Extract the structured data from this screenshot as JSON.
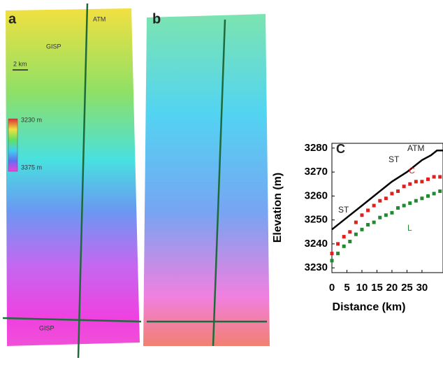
{
  "panels": {
    "a": {
      "label": "a",
      "texts": [
        "ATM",
        "GISP",
        "2 km",
        "3230 m",
        "3375 m",
        "GISP"
      ]
    },
    "b": {
      "label": "b"
    }
  },
  "chart_data": {
    "type": "scatter",
    "panel_label": "c",
    "xlabel": "Distance (km)",
    "ylabel": "Elevation (m)",
    "xlim": [
      0,
      37
    ],
    "xticks": [
      0,
      5,
      10,
      15,
      20,
      25,
      30
    ],
    "ylim": [
      3228,
      3282
    ],
    "yticks": [
      3230,
      3240,
      3250,
      3260,
      3270,
      3280
    ],
    "series": [
      {
        "name": "ATM",
        "color": "#000000",
        "style": "line",
        "x": [
          0,
          5,
          10,
          15,
          20,
          25,
          30,
          33,
          35,
          37
        ],
        "values": [
          3246,
          3251,
          3256,
          3261,
          3266,
          3270,
          3275,
          3277,
          3279,
          3279
        ]
      },
      {
        "name": "C",
        "color": "#e0201c",
        "style": "points",
        "x": [
          0,
          2,
          4,
          6,
          8,
          10,
          12,
          14,
          16,
          18,
          20,
          22,
          24,
          26,
          28,
          30,
          32,
          34,
          36
        ],
        "values": [
          3236,
          3240,
          3243,
          3245,
          3249,
          3252,
          3254,
          3256,
          3258,
          3259,
          3261,
          3262,
          3264,
          3265,
          3266,
          3266,
          3267,
          3268,
          3268
        ]
      },
      {
        "name": "L",
        "color": "#1f8a2e",
        "style": "points",
        "x": [
          0,
          2,
          4,
          6,
          8,
          10,
          12,
          14,
          16,
          18,
          20,
          22,
          24,
          26,
          28,
          30,
          32,
          34,
          36
        ],
        "values": [
          3233,
          3236,
          3239,
          3241,
          3244,
          3246,
          3248,
          3249,
          3251,
          3252,
          3253,
          3255,
          3256,
          3257,
          3258,
          3259,
          3260,
          3261,
          3262
        ]
      }
    ],
    "annotations": [
      "ATM",
      "ST",
      "C",
      "ST",
      "L"
    ]
  }
}
